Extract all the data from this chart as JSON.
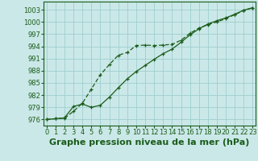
{
  "title": "Graphe pression niveau de la mer (hPa)",
  "bg_color": "#cbe8e8",
  "grid_color": "#9ecece",
  "line_color": "#1a5c1a",
  "x_ticks": [
    0,
    1,
    2,
    3,
    4,
    5,
    6,
    7,
    8,
    9,
    10,
    11,
    12,
    13,
    14,
    15,
    16,
    17,
    18,
    19,
    20,
    21,
    22,
    23
  ],
  "y_ticks": [
    976,
    979,
    982,
    985,
    988,
    991,
    994,
    997,
    1000,
    1003
  ],
  "ylim": [
    974.5,
    1005.0
  ],
  "xlim": [
    -0.3,
    23.3
  ],
  "line1_dashed": [
    976.0,
    976.2,
    976.3,
    978.0,
    980.0,
    983.5,
    987.0,
    989.5,
    991.8,
    992.5,
    994.2,
    994.3,
    994.2,
    994.3,
    994.5,
    995.5,
    997.2,
    998.5,
    999.3,
    1000.0,
    1000.8,
    1001.8,
    1002.8,
    1003.5
  ],
  "line2_solid": [
    976.0,
    976.2,
    976.4,
    979.2,
    979.8,
    979.0,
    979.5,
    981.5,
    983.8,
    986.0,
    987.8,
    989.3,
    990.8,
    992.2,
    993.3,
    995.0,
    996.8,
    998.3,
    999.5,
    1000.3,
    1001.0,
    1001.9,
    1002.9,
    1003.5
  ],
  "title_fontsize": 8,
  "tick_fontsize": 6,
  "tick_color": "#1a5c1a",
  "spine_color": "#1a5c1a"
}
